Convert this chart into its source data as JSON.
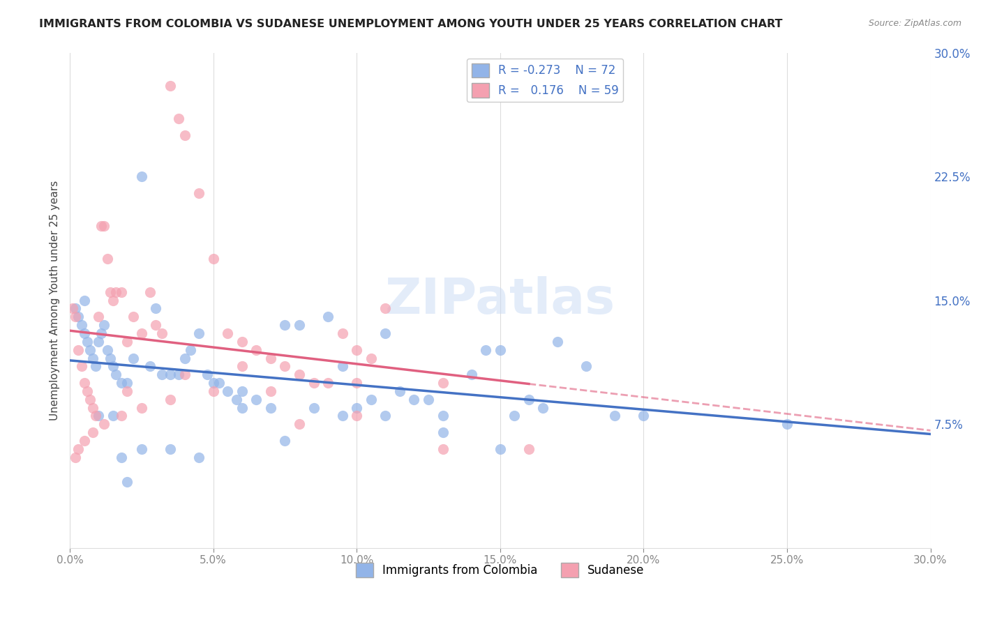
{
  "title": "IMMIGRANTS FROM COLOMBIA VS SUDANESE UNEMPLOYMENT AMONG YOUTH UNDER 25 YEARS CORRELATION CHART",
  "source": "Source: ZipAtlas.com",
  "ylabel": "Unemployment Among Youth under 25 years",
  "xlim": [
    0,
    0.3
  ],
  "ylim": [
    0,
    0.3
  ],
  "xtick_labels": [
    "0.0%",
    "5.0%",
    "10.0%",
    "15.0%",
    "20.0%",
    "25.0%",
    "30.0%"
  ],
  "xtick_vals": [
    0.0,
    0.05,
    0.1,
    0.15,
    0.2,
    0.25,
    0.3
  ],
  "ytick_labels_right": [
    "30.0%",
    "22.5%",
    "15.0%",
    "7.5%"
  ],
  "ytick_vals_right": [
    0.3,
    0.225,
    0.15,
    0.075
  ],
  "watermark": "ZIPatlas",
  "legend_R_colombia": "-0.273",
  "legend_N_colombia": "72",
  "legend_R_sudanese": "0.176",
  "legend_N_sudanese": "59",
  "blue_color": "#92b4e8",
  "pink_color": "#f4a0b0",
  "blue_line_color": "#4472c4",
  "pink_line_color": "#e06080",
  "colombia_x": [
    0.002,
    0.003,
    0.004,
    0.005,
    0.006,
    0.007,
    0.008,
    0.009,
    0.01,
    0.011,
    0.012,
    0.013,
    0.014,
    0.015,
    0.016,
    0.018,
    0.02,
    0.022,
    0.025,
    0.028,
    0.03,
    0.032,
    0.035,
    0.038,
    0.04,
    0.042,
    0.045,
    0.048,
    0.05,
    0.052,
    0.055,
    0.058,
    0.06,
    0.065,
    0.07,
    0.075,
    0.08,
    0.085,
    0.09,
    0.095,
    0.1,
    0.105,
    0.11,
    0.115,
    0.12,
    0.125,
    0.13,
    0.14,
    0.145,
    0.15,
    0.155,
    0.16,
    0.165,
    0.17,
    0.18,
    0.19,
    0.01,
    0.015,
    0.018,
    0.025,
    0.035,
    0.045,
    0.06,
    0.075,
    0.095,
    0.11,
    0.13,
    0.15,
    0.2,
    0.25,
    0.005,
    0.02
  ],
  "colombia_y": [
    0.145,
    0.14,
    0.135,
    0.13,
    0.125,
    0.12,
    0.115,
    0.11,
    0.125,
    0.13,
    0.135,
    0.12,
    0.115,
    0.11,
    0.105,
    0.1,
    0.1,
    0.115,
    0.225,
    0.11,
    0.145,
    0.105,
    0.105,
    0.105,
    0.115,
    0.12,
    0.13,
    0.105,
    0.1,
    0.1,
    0.095,
    0.09,
    0.095,
    0.09,
    0.085,
    0.135,
    0.135,
    0.085,
    0.14,
    0.08,
    0.085,
    0.09,
    0.13,
    0.095,
    0.09,
    0.09,
    0.08,
    0.105,
    0.12,
    0.12,
    0.08,
    0.09,
    0.085,
    0.125,
    0.11,
    0.08,
    0.08,
    0.08,
    0.055,
    0.06,
    0.06,
    0.055,
    0.085,
    0.065,
    0.11,
    0.08,
    0.07,
    0.06,
    0.08,
    0.075,
    0.15,
    0.04
  ],
  "sudanese_x": [
    0.001,
    0.002,
    0.003,
    0.004,
    0.005,
    0.006,
    0.007,
    0.008,
    0.009,
    0.01,
    0.011,
    0.012,
    0.013,
    0.014,
    0.015,
    0.016,
    0.018,
    0.02,
    0.022,
    0.025,
    0.028,
    0.03,
    0.032,
    0.035,
    0.038,
    0.04,
    0.045,
    0.05,
    0.055,
    0.06,
    0.065,
    0.07,
    0.075,
    0.08,
    0.085,
    0.09,
    0.095,
    0.1,
    0.105,
    0.11,
    0.002,
    0.003,
    0.005,
    0.008,
    0.012,
    0.018,
    0.025,
    0.035,
    0.05,
    0.07,
    0.1,
    0.13,
    0.16,
    0.02,
    0.04,
    0.06,
    0.08,
    0.1,
    0.13
  ],
  "sudanese_y": [
    0.145,
    0.14,
    0.12,
    0.11,
    0.1,
    0.095,
    0.09,
    0.085,
    0.08,
    0.14,
    0.195,
    0.195,
    0.175,
    0.155,
    0.15,
    0.155,
    0.155,
    0.125,
    0.14,
    0.13,
    0.155,
    0.135,
    0.13,
    0.28,
    0.26,
    0.25,
    0.215,
    0.175,
    0.13,
    0.125,
    0.12,
    0.115,
    0.11,
    0.105,
    0.1,
    0.1,
    0.13,
    0.12,
    0.115,
    0.145,
    0.055,
    0.06,
    0.065,
    0.07,
    0.075,
    0.08,
    0.085,
    0.09,
    0.095,
    0.095,
    0.1,
    0.1,
    0.06,
    0.095,
    0.105,
    0.11,
    0.075,
    0.08,
    0.06
  ]
}
